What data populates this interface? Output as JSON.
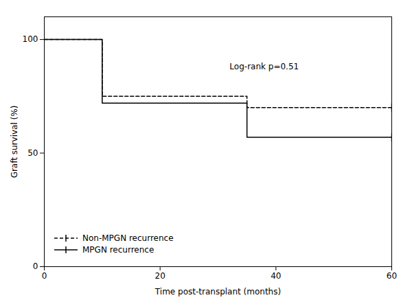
{
  "chart_data": {
    "type": "step",
    "xlabel": "Time post-transplant (months)",
    "ylabel": "Graft survival (%)",
    "x": [
      0,
      10,
      10,
      35,
      35,
      60
    ],
    "series": [
      {
        "name": "Non-MPGN recurrence",
        "color": "#000000",
        "line_style": "dashed",
        "marker": "|",
        "values": [
          100,
          100,
          75,
          75,
          70,
          70
        ],
        "censor_x": [
          60
        ],
        "censor_y": [
          70
        ]
      },
      {
        "name": "MPGN recurrence",
        "color": "#000000",
        "line_style": "solid",
        "marker": "|",
        "values": [
          100,
          100,
          72,
          72,
          57,
          57
        ],
        "censor_x": [
          60
        ],
        "censor_y": [
          57
        ]
      }
    ],
    "annotations": [
      {
        "text": "Log-rank p=0.51",
        "x": 32,
        "y": 87
      }
    ],
    "xlim": [
      0,
      60
    ],
    "xticks": [
      0,
      20,
      40,
      60
    ],
    "ylim": [
      0,
      110
    ],
    "yticks": [
      0,
      50,
      100
    ],
    "grid": false,
    "legend": "lower left"
  }
}
